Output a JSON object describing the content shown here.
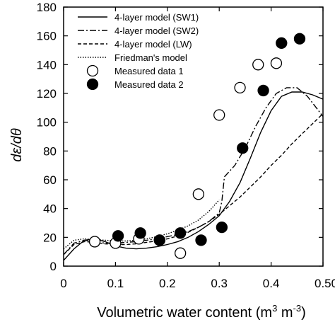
{
  "chart_data": {
    "type": "line",
    "title": "",
    "xlabel": "Volumetric water content (m",
    "xlabel_sup1": "3",
    "xlabel_mid": " m",
    "xlabel_sup2": "-3",
    "xlabel_end": ")",
    "ylabel": "dε/dθ",
    "xlim": [
      0,
      0.5
    ],
    "ylim": [
      0,
      180
    ],
    "xticks": [
      0,
      0.1,
      0.2,
      0.3,
      0.4,
      0.5
    ],
    "xtick_labels": [
      "0",
      "0.1",
      "0.2",
      "0.3",
      "0.4",
      "0.50"
    ],
    "yticks": [
      0,
      20,
      40,
      60,
      80,
      100,
      120,
      140,
      160,
      180
    ],
    "ytick_labels": [
      "0",
      "20",
      "40",
      "60",
      "80",
      "100",
      "120",
      "140",
      "160",
      "180"
    ],
    "grid": false,
    "legend_position": "top-right",
    "series": [
      {
        "name": "4-layer model (SW1)",
        "style": "solid",
        "x": [
          0,
          0.02,
          0.04,
          0.06,
          0.08,
          0.1,
          0.12,
          0.14,
          0.16,
          0.18,
          0.2,
          0.22,
          0.24,
          0.26,
          0.28,
          0.3,
          0.32,
          0.34,
          0.36,
          0.38,
          0.4,
          0.42,
          0.44,
          0.46,
          0.48,
          0.5
        ],
        "y": [
          4,
          12,
          18,
          19,
          17,
          14,
          12.5,
          12,
          12.5,
          13.5,
          15,
          17,
          20,
          24,
          29,
          35,
          45,
          58,
          75,
          93,
          108,
          118,
          121,
          121,
          119,
          116
        ]
      },
      {
        "name": "4-layer model (SW2)",
        "style": "dashdot",
        "x": [
          0,
          0.02,
          0.04,
          0.06,
          0.08,
          0.1,
          0.12,
          0.14,
          0.16,
          0.18,
          0.2,
          0.22,
          0.24,
          0.26,
          0.28,
          0.3,
          0.305,
          0.31,
          0.33,
          0.35,
          0.37,
          0.39,
          0.41,
          0.43,
          0.45,
          0.47,
          0.5
        ],
        "y": [
          8,
          16,
          18,
          17,
          16,
          16,
          16.5,
          17,
          18,
          19,
          20.5,
          22,
          24,
          27,
          31,
          37,
          45,
          62,
          70,
          82,
          97,
          110,
          120,
          124,
          124,
          118,
          104
        ]
      },
      {
        "name": "4-layer model (LW)",
        "style": "dashed",
        "x": [
          0,
          0.02,
          0.04,
          0.06,
          0.08,
          0.1,
          0.12,
          0.14,
          0.16,
          0.18,
          0.2,
          0.22,
          0.24,
          0.26,
          0.28,
          0.3,
          0.32,
          0.34,
          0.36,
          0.38,
          0.4,
          0.42,
          0.44,
          0.46,
          0.48,
          0.5
        ],
        "y": [
          8,
          15,
          17,
          16.5,
          15.5,
          15,
          15,
          15.5,
          16.5,
          17.5,
          19,
          21,
          23.5,
          27,
          31,
          36,
          42,
          48,
          55,
          62,
          70,
          77,
          85,
          92,
          99,
          106
        ]
      },
      {
        "name": "Friedman's model",
        "style": "dotted",
        "x": [
          0,
          0.02,
          0.04,
          0.06,
          0.08,
          0.1,
          0.12,
          0.14,
          0.16,
          0.18,
          0.2,
          0.22,
          0.24,
          0.26,
          0.28,
          0.3
        ],
        "y": [
          12,
          18,
          19,
          18.5,
          18,
          17.5,
          17.5,
          18,
          19,
          20.5,
          22.5,
          25,
          28,
          32,
          38,
          46
        ]
      },
      {
        "name": "Measured data 1",
        "style": "open-circle",
        "x": [
          0.06,
          0.1,
          0.145,
          0.185,
          0.225,
          0.26,
          0.3,
          0.34,
          0.375,
          0.41
        ],
        "y": [
          17,
          16,
          19,
          18,
          9,
          50,
          105,
          124,
          140,
          141
        ]
      },
      {
        "name": "Measured data 2",
        "style": "filled-circle",
        "x": [
          0.105,
          0.148,
          0.185,
          0.225,
          0.265,
          0.305,
          0.345,
          0.385,
          0.42,
          0.455
        ],
        "y": [
          21,
          23,
          18,
          23,
          18,
          27,
          82,
          122,
          155,
          158
        ]
      }
    ]
  }
}
